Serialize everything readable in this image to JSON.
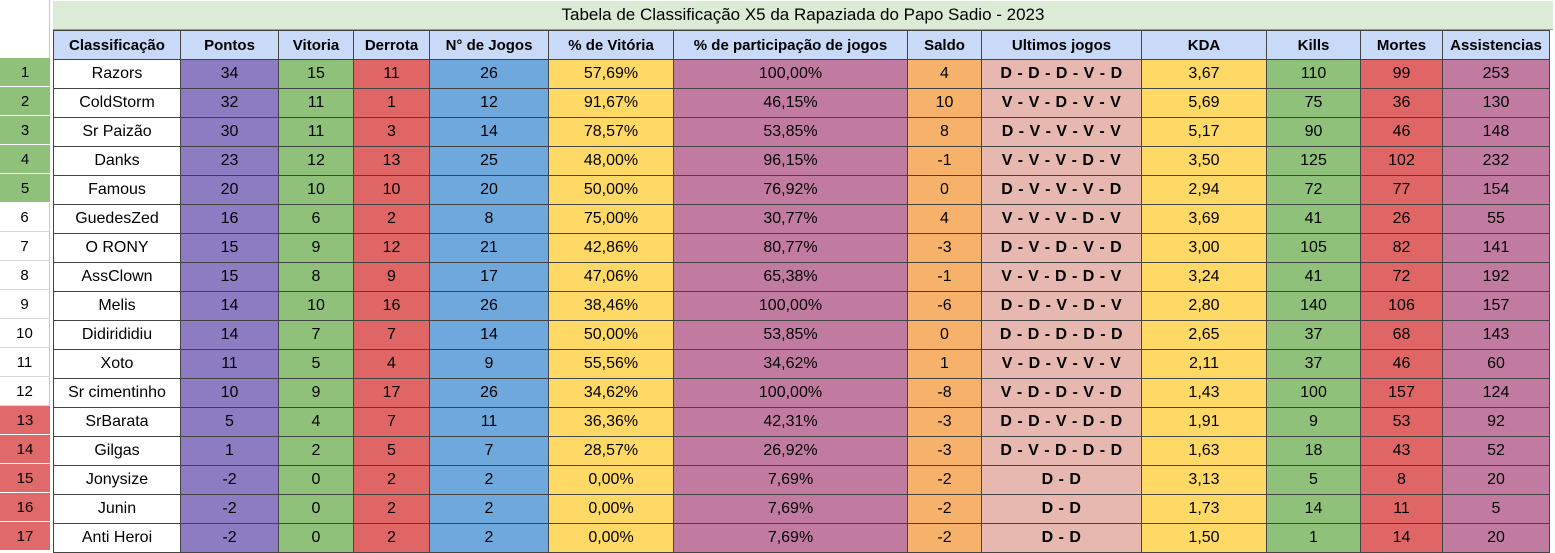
{
  "title": "Tabela de Classificação X5 da Rapaziada do Papo Sadio - 2023",
  "colors": {
    "purple": "#8e7cc3",
    "green": "#8fc17a",
    "red": "#e06666",
    "blue": "#6fa8dc",
    "yellow": "#ffd966",
    "mauve": "#c27ba0",
    "orange": "#f6b26b",
    "salmon": "#e6b8af",
    "header_blue": "#c9daf8",
    "white": "#ffffff"
  },
  "headers": [
    "Classificação",
    "Pontos",
    "Vitoria",
    "Derrota",
    "N° de  Jogos",
    "% de Vitória",
    "% de participação de jogos",
    "Saldo",
    "Ultimos jogos",
    "KDA",
    "Kills",
    "Mortes",
    "Assistencias"
  ],
  "rows": [
    {
      "num": "1",
      "cells": [
        "Razors",
        "34",
        "15",
        "11",
        "26",
        "57,69%",
        "100,00%",
        "4",
        "D - D - D - V - D",
        "3,67",
        "110",
        "99",
        "253"
      ]
    },
    {
      "num": "2",
      "cells": [
        "ColdStorm",
        "32",
        "11",
        "1",
        "12",
        "91,67%",
        "46,15%",
        "10",
        "V - V - D - V - V",
        "5,69",
        "75",
        "36",
        "130"
      ]
    },
    {
      "num": "3",
      "cells": [
        "Sr Paizão",
        "30",
        "11",
        "3",
        "14",
        "78,57%",
        "53,85%",
        "8",
        "D - V - V - V - V",
        "5,17",
        "90",
        "46",
        "148"
      ]
    },
    {
      "num": "4",
      "cells": [
        "Danks",
        "23",
        "12",
        "13",
        "25",
        "48,00%",
        "96,15%",
        "-1",
        "V - V - V - D - V",
        "3,50",
        "125",
        "102",
        "232"
      ]
    },
    {
      "num": "5",
      "cells": [
        "Famous",
        "20",
        "10",
        "10",
        "20",
        "50,00%",
        "76,92%",
        "0",
        "D - V - V - V - D",
        "2,94",
        "72",
        "77",
        "154"
      ]
    },
    {
      "num": "6",
      "cells": [
        "GuedesZed",
        "16",
        "6",
        "2",
        "8",
        "75,00%",
        "30,77%",
        "4",
        "V - V - V - D - V",
        "3,69",
        "41",
        "26",
        "55"
      ]
    },
    {
      "num": "7",
      "cells": [
        "O RONY",
        "15",
        "9",
        "12",
        "21",
        "42,86%",
        "80,77%",
        "-3",
        "D - V - D - V - D",
        "3,00",
        "105",
        "82",
        "141"
      ]
    },
    {
      "num": "8",
      "cells": [
        "AssClown",
        "15",
        "8",
        "9",
        "17",
        "47,06%",
        "65,38%",
        "-1",
        "V - V - D - D - V",
        "3,24",
        "41",
        "72",
        "192"
      ]
    },
    {
      "num": "9",
      "cells": [
        "Melis",
        "14",
        "10",
        "16",
        "26",
        "38,46%",
        "100,00%",
        "-6",
        "D - D - V - D - V",
        "2,80",
        "140",
        "106",
        "157"
      ]
    },
    {
      "num": "10",
      "cells": [
        "Didirididiu",
        "14",
        "7",
        "7",
        "14",
        "50,00%",
        "53,85%",
        "0",
        "D - D - D - D - D",
        "2,65",
        "37",
        "68",
        "143"
      ]
    },
    {
      "num": "11",
      "cells": [
        "Xoto",
        "11",
        "5",
        "4",
        "9",
        "55,56%",
        "34,62%",
        "1",
        "V - D - V - V - V",
        "2,11",
        "37",
        "46",
        "60"
      ]
    },
    {
      "num": "12",
      "cells": [
        "Sr cimentinho",
        "10",
        "9",
        "17",
        "26",
        "34,62%",
        "100,00%",
        "-8",
        "V - D  - D - V - D",
        "1,43",
        "100",
        "157",
        "124"
      ]
    },
    {
      "num": "13",
      "cells": [
        "SrBarata",
        "5",
        "4",
        "7",
        "11",
        "36,36%",
        "42,31%",
        "-3",
        "D - D - V - D - D",
        "1,91",
        "9",
        "53",
        "92"
      ]
    },
    {
      "num": "14",
      "cells": [
        "Gilgas",
        "1",
        "2",
        "5",
        "7",
        "28,57%",
        "26,92%",
        "-3",
        "D - V - D - D - D",
        "1,63",
        "18",
        "43",
        "52"
      ]
    },
    {
      "num": "15",
      "cells": [
        "Jonysize",
        "-2",
        "0",
        "2",
        "2",
        "0,00%",
        "7,69%",
        "-2",
        "D  - D",
        "3,13",
        "5",
        "8",
        "20"
      ]
    },
    {
      "num": "16",
      "cells": [
        "Junin",
        "-2",
        "0",
        "2",
        "2",
        "0,00%",
        "7,69%",
        "-2",
        "D - D",
        "1,73",
        "14",
        "11",
        "5"
      ]
    },
    {
      "num": "17",
      "cells": [
        "Anti Heroi",
        "-2",
        "0",
        "2",
        "2",
        "0,00%",
        "7,69%",
        "-2",
        "D - D",
        "1,50",
        "1",
        "14",
        "20"
      ]
    }
  ]
}
